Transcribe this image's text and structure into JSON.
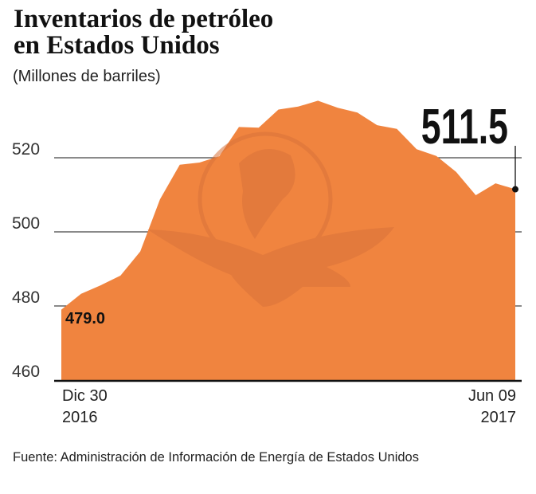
{
  "title_lines": [
    "Inventarios de petróleo",
    "en Estados Unidos"
  ],
  "subtitle": "(Millones de barriles)",
  "footer": "Fuente: Administración de Información de Energía de Estados Unidos",
  "colors": {
    "area": "#F0843F",
    "watermark": "#D9733A",
    "text": "#111111"
  },
  "chart_data": {
    "type": "area",
    "title": "Inventarios de petróleo en Estados Unidos",
    "ylabel": "(Millones de barriles)",
    "ylim": [
      460,
      540
    ],
    "yticks": [
      460,
      480,
      500,
      520
    ],
    "x_labels": [
      {
        "line1": "Dic 30",
        "line2": "2016"
      },
      {
        "line1": "Jun 09",
        "line2": "2017"
      }
    ],
    "grid": true,
    "values": [
      479.0,
      483.3,
      485.6,
      488.2,
      494.7,
      508.8,
      518.1,
      518.7,
      520.4,
      528.3,
      528.1,
      533.0,
      533.8,
      535.4,
      533.5,
      532.2,
      528.8,
      527.8,
      522.3,
      520.5,
      516.2,
      509.9,
      513.1,
      511.5
    ],
    "annotations": {
      "first": "479.0",
      "last": "511.5"
    }
  }
}
